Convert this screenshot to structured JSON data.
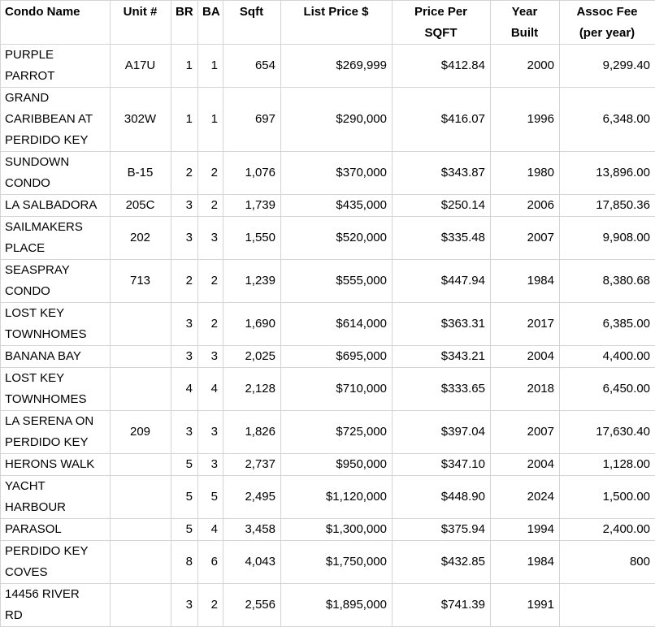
{
  "colors": {
    "background": "#ffffff",
    "gridline": "#d4d4d4",
    "text": "#000000"
  },
  "table": {
    "columns": [
      {
        "id": "condo-name",
        "label": "Condo Name"
      },
      {
        "id": "unit",
        "label": "Unit #"
      },
      {
        "id": "br",
        "label": "BR"
      },
      {
        "id": "ba",
        "label": "BA"
      },
      {
        "id": "sqft",
        "label": "Sqft"
      },
      {
        "id": "list-price",
        "label": "List Price $"
      },
      {
        "id": "price-per-sqft",
        "label": "Price Per\nSQFT"
      },
      {
        "id": "year-built",
        "label": "Year\nBuilt"
      },
      {
        "id": "assoc-fee",
        "label": "Assoc Fee\n(per year)"
      }
    ],
    "rows": [
      [
        "PURPLE\nPARROT",
        "A17U",
        "1",
        "1",
        "654",
        "$269,999",
        "$412.84",
        "2000",
        "9,299.40"
      ],
      [
        "GRAND\nCARIBBEAN AT\nPERDIDO KEY",
        "302W",
        "1",
        "1",
        "697",
        "$290,000",
        "$416.07",
        "1996",
        "6,348.00"
      ],
      [
        "SUNDOWN\nCONDO",
        "B-15",
        "2",
        "2",
        "1,076",
        "$370,000",
        "$343.87",
        "1980",
        "13,896.00"
      ],
      [
        "LA SALBADORA",
        "205C",
        "3",
        "2",
        "1,739",
        "$435,000",
        "$250.14",
        "2006",
        "17,850.36"
      ],
      [
        "SAILMAKERS\nPLACE",
        "202",
        "3",
        "3",
        "1,550",
        "$520,000",
        "$335.48",
        "2007",
        "9,908.00"
      ],
      [
        "SEASPRAY\nCONDO",
        "713",
        "2",
        "2",
        "1,239",
        "$555,000",
        "$447.94",
        "1984",
        "8,380.68"
      ],
      [
        "LOST KEY\nTOWNHOMES",
        "",
        "3",
        "2",
        "1,690",
        "$614,000",
        "$363.31",
        "2017",
        "6,385.00"
      ],
      [
        "BANANA BAY",
        "",
        "3",
        "3",
        "2,025",
        "$695,000",
        "$343.21",
        "2004",
        "4,400.00"
      ],
      [
        "LOST KEY\nTOWNHOMES",
        "",
        "4",
        "4",
        "2,128",
        "$710,000",
        "$333.65",
        "2018",
        "6,450.00"
      ],
      [
        "LA SERENA ON\nPERDIDO KEY",
        "209",
        "3",
        "3",
        "1,826",
        "$725,000",
        "$397.04",
        "2007",
        "17,630.40"
      ],
      [
        "HERONS WALK",
        "",
        "5",
        "3",
        "2,737",
        "$950,000",
        "$347.10",
        "2004",
        "1,128.00"
      ],
      [
        "YACHT\nHARBOUR",
        "",
        "5",
        "5",
        "2,495",
        "$1,120,000",
        "$448.90",
        "2024",
        "1,500.00"
      ],
      [
        "PARASOL",
        "",
        "5",
        "4",
        "3,458",
        "$1,300,000",
        "$375.94",
        "1994",
        "2,400.00"
      ],
      [
        "PERDIDO KEY\nCOVES",
        "",
        "8",
        "6",
        "4,043",
        "$1,750,000",
        "$432.85",
        "1984",
        "800"
      ],
      [
        "14456 RIVER\nRD",
        "",
        "3",
        "2",
        "2,556",
        "$1,895,000",
        "$741.39",
        "1991",
        ""
      ]
    ]
  }
}
